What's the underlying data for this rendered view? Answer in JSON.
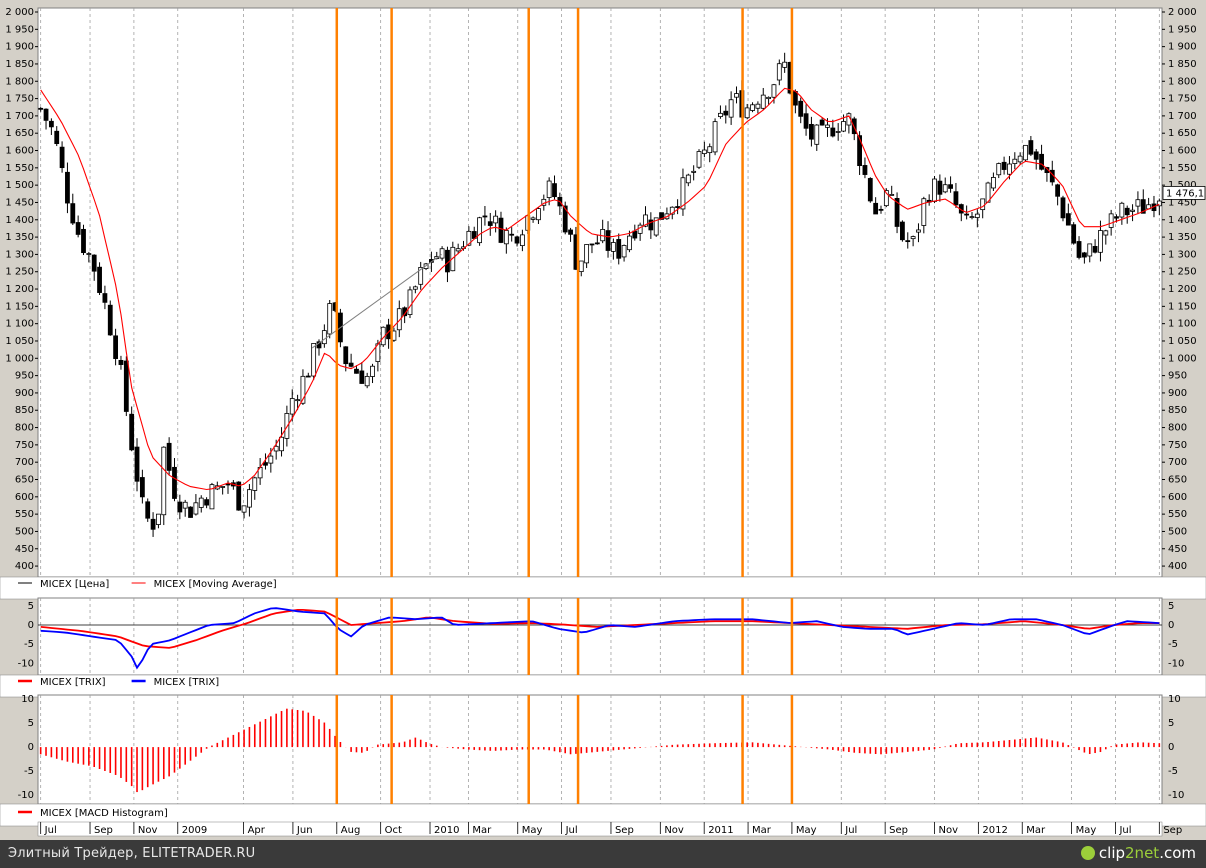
{
  "footer": {
    "left_text": "Элитный Трейдер, ELITETRADER.RU",
    "logo_text_1": "clip",
    "logo_text_2": "2net",
    "logo_text_3": ".com"
  },
  "colors": {
    "price": "#000000",
    "ma": "#ff0000",
    "trix_red": "#ff0000",
    "trix_blue": "#0000ff",
    "macd": "#ff0000",
    "marker": "#ff8000",
    "grid": "#a0a0a0",
    "panel_bg": "#ffffff",
    "frame": "#d4d0c8"
  },
  "chart_data": [
    {
      "type": "candlestick",
      "title": "",
      "legend": [
        {
          "name": "MICEX [Цена]",
          "color": "#000000"
        },
        {
          "name": "MICEX [Moving Average]",
          "color": "#ff0000"
        }
      ],
      "ylim": [
        380,
        2000
      ],
      "yticks": [
        400,
        450,
        500,
        550,
        600,
        650,
        700,
        750,
        800,
        850,
        900,
        950,
        1000,
        1050,
        1100,
        1150,
        1200,
        1250,
        1300,
        1350,
        1400,
        1450,
        1500,
        1550,
        1600,
        1650,
        1700,
        1750,
        1800,
        1850,
        1900,
        1950,
        2000
      ],
      "last_value_label": "1 476,1",
      "last_value": 1476.1,
      "ohlc": [],
      "price_anchors": [
        [
          0,
          1720
        ],
        [
          2,
          1650
        ],
        [
          4,
          1480
        ],
        [
          6,
          1350
        ],
        [
          8,
          1280
        ],
        [
          10,
          1150
        ],
        [
          12,
          1000
        ],
        [
          14,
          760
        ],
        [
          16,
          540
        ],
        [
          18,
          520
        ],
        [
          19,
          740
        ],
        [
          21,
          600
        ],
        [
          23,
          560
        ],
        [
          25,
          600
        ],
        [
          27,
          620
        ],
        [
          29,
          640
        ],
        [
          31,
          580
        ],
        [
          33,
          650
        ],
        [
          35,
          700
        ],
        [
          37,
          760
        ],
        [
          39,
          890
        ],
        [
          41,
          950
        ],
        [
          43,
          1050
        ],
        [
          45,
          1150
        ],
        [
          47,
          1000
        ],
        [
          49,
          960
        ],
        [
          51,
          940
        ],
        [
          53,
          1070
        ],
        [
          55,
          1100
        ],
        [
          57,
          1160
        ],
        [
          59,
          1250
        ],
        [
          61,
          1300
        ],
        [
          63,
          1280
        ],
        [
          65,
          1330
        ],
        [
          67,
          1380
        ],
        [
          69,
          1420
        ],
        [
          71,
          1370
        ],
        [
          73,
          1350
        ],
        [
          75,
          1400
        ],
        [
          77,
          1460
        ],
        [
          79,
          1490
        ],
        [
          81,
          1400
        ],
        [
          83,
          1270
        ],
        [
          85,
          1330
        ],
        [
          87,
          1340
        ],
        [
          89,
          1300
        ],
        [
          91,
          1360
        ],
        [
          93,
          1410
        ],
        [
          95,
          1390
        ],
        [
          97,
          1440
        ],
        [
          99,
          1480
        ],
        [
          101,
          1540
        ],
        [
          103,
          1600
        ],
        [
          105,
          1680
        ],
        [
          107,
          1750
        ],
        [
          109,
          1720
        ],
        [
          111,
          1760
        ],
        [
          113,
          1790
        ],
        [
          115,
          1850
        ],
        [
          117,
          1700
        ],
        [
          119,
          1640
        ],
        [
          121,
          1640
        ],
        [
          123,
          1680
        ],
        [
          125,
          1690
        ],
        [
          127,
          1560
        ],
        [
          129,
          1420
        ],
        [
          131,
          1480
        ],
        [
          133,
          1350
        ],
        [
          135,
          1330
        ],
        [
          137,
          1480
        ],
        [
          139,
          1500
        ],
        [
          141,
          1460
        ],
        [
          143,
          1380
        ],
        [
          145,
          1420
        ],
        [
          147,
          1490
        ],
        [
          149,
          1560
        ],
        [
          151,
          1600
        ],
        [
          153,
          1610
        ],
        [
          155,
          1540
        ],
        [
          157,
          1480
        ],
        [
          159,
          1380
        ],
        [
          161,
          1270
        ],
        [
          163,
          1330
        ],
        [
          165,
          1380
        ],
        [
          167,
          1420
        ],
        [
          169,
          1430
        ],
        [
          171,
          1440
        ],
        [
          173,
          1476
        ]
      ],
      "ma_anchors": [
        [
          0,
          1775
        ],
        [
          3,
          1690
        ],
        [
          6,
          1580
        ],
        [
          9,
          1420
        ],
        [
          12,
          1180
        ],
        [
          14,
          920
        ],
        [
          17,
          720
        ],
        [
          20,
          660
        ],
        [
          23,
          630
        ],
        [
          26,
          620
        ],
        [
          29,
          640
        ],
        [
          31,
          630
        ],
        [
          33,
          660
        ],
        [
          36,
          740
        ],
        [
          39,
          830
        ],
        [
          42,
          930
        ],
        [
          44,
          1020
        ],
        [
          46,
          980
        ],
        [
          48,
          970
        ],
        [
          50,
          990
        ],
        [
          53,
          1060
        ],
        [
          56,
          1120
        ],
        [
          59,
          1200
        ],
        [
          62,
          1260
        ],
        [
          65,
          1310
        ],
        [
          68,
          1360
        ],
        [
          70,
          1380
        ],
        [
          72,
          1370
        ],
        [
          75,
          1410
        ],
        [
          78,
          1450
        ],
        [
          80,
          1460
        ],
        [
          82,
          1410
        ],
        [
          85,
          1360
        ],
        [
          88,
          1350
        ],
        [
          91,
          1360
        ],
        [
          94,
          1390
        ],
        [
          97,
          1410
        ],
        [
          100,
          1450
        ],
        [
          103,
          1500
        ],
        [
          106,
          1620
        ],
        [
          109,
          1680
        ],
        [
          112,
          1720
        ],
        [
          115,
          1780
        ],
        [
          117,
          1770
        ],
        [
          119,
          1720
        ],
        [
          122,
          1680
        ],
        [
          125,
          1700
        ],
        [
          127,
          1620
        ],
        [
          129,
          1530
        ],
        [
          131,
          1470
        ],
        [
          134,
          1430
        ],
        [
          137,
          1450
        ],
        [
          140,
          1460
        ],
        [
          143,
          1420
        ],
        [
          146,
          1440
        ],
        [
          149,
          1510
        ],
        [
          152,
          1570
        ],
        [
          155,
          1560
        ],
        [
          158,
          1500
        ],
        [
          161,
          1380
        ],
        [
          164,
          1380
        ],
        [
          167,
          1400
        ],
        [
          170,
          1420
        ],
        [
          173,
          1445
        ]
      ],
      "trend_line": [
        [
          42,
          1030
        ],
        [
          62,
          1300
        ]
      ]
    },
    {
      "type": "line",
      "title": "",
      "legend": [
        {
          "name": "MICEX [TRIX]",
          "color": "#ff0000"
        },
        {
          "name": "MICEX [TRIX]",
          "color": "#0000ff"
        }
      ],
      "ylim": [
        -12,
        6
      ],
      "yticks": [
        5,
        0,
        -5,
        -10
      ],
      "series": [
        {
          "name": "MICEX [TRIX]",
          "color": "#ff0000",
          "anchors": [
            [
              0,
              -0.5
            ],
            [
              6,
              -1.5
            ],
            [
              12,
              -3
            ],
            [
              16,
              -5.5
            ],
            [
              20,
              -6
            ],
            [
              24,
              -4
            ],
            [
              28,
              -1.5
            ],
            [
              32,
              0.5
            ],
            [
              36,
              3
            ],
            [
              40,
              4
            ],
            [
              44,
              3.5
            ],
            [
              48,
              0
            ],
            [
              52,
              0.5
            ],
            [
              56,
              1
            ],
            [
              60,
              2
            ],
            [
              64,
              1
            ],
            [
              70,
              0.3
            ],
            [
              76,
              0.5
            ],
            [
              80,
              0.2
            ],
            [
              86,
              -0.5
            ],
            [
              92,
              0
            ],
            [
              98,
              0.5
            ],
            [
              104,
              1
            ],
            [
              110,
              1
            ],
            [
              116,
              0.5
            ],
            [
              122,
              0
            ],
            [
              128,
              -0.5
            ],
            [
              134,
              -1
            ],
            [
              140,
              0
            ],
            [
              146,
              0.2
            ],
            [
              152,
              1
            ],
            [
              158,
              0
            ],
            [
              162,
              -1
            ],
            [
              166,
              0
            ],
            [
              170,
              0.5
            ],
            [
              173,
              0.5
            ]
          ]
        },
        {
          "name": "MICEX [TRIX]",
          "color": "#0000ff",
          "anchors": [
            [
              0,
              -1.5
            ],
            [
              4,
              -2
            ],
            [
              8,
              -3
            ],
            [
              12,
              -4
            ],
            [
              14,
              -8
            ],
            [
              15,
              -11.5
            ],
            [
              17,
              -5
            ],
            [
              20,
              -4
            ],
            [
              23,
              -2
            ],
            [
              26,
              0
            ],
            [
              30,
              0.5
            ],
            [
              33,
              3
            ],
            [
              36,
              4.5
            ],
            [
              40,
              3.5
            ],
            [
              44,
              3
            ],
            [
              46,
              -1
            ],
            [
              48,
              -3
            ],
            [
              50,
              0
            ],
            [
              54,
              2
            ],
            [
              58,
              1.5
            ],
            [
              62,
              2
            ],
            [
              64,
              0
            ],
            [
              70,
              0.5
            ],
            [
              76,
              1
            ],
            [
              80,
              -1
            ],
            [
              84,
              -2
            ],
            [
              88,
              0
            ],
            [
              92,
              -0.5
            ],
            [
              98,
              1
            ],
            [
              104,
              1.5
            ],
            [
              110,
              1.5
            ],
            [
              116,
              0.5
            ],
            [
              120,
              1
            ],
            [
              124,
              -0.5
            ],
            [
              128,
              -1
            ],
            [
              132,
              -1
            ],
            [
              134,
              -2.5
            ],
            [
              138,
              -1
            ],
            [
              142,
              0.5
            ],
            [
              146,
              0
            ],
            [
              150,
              1.5
            ],
            [
              154,
              1.5
            ],
            [
              158,
              0
            ],
            [
              162,
              -2.5
            ],
            [
              166,
              0
            ],
            [
              168,
              1
            ],
            [
              173,
              0.5
            ]
          ]
        }
      ]
    },
    {
      "type": "bar",
      "title": "",
      "legend": [
        {
          "name": "MICEX [MACD Histogram]",
          "color": "#ff0000"
        }
      ],
      "ylim": [
        -11,
        10
      ],
      "yticks": [
        10,
        5,
        0,
        -5,
        -10
      ],
      "anchors": [
        [
          0,
          -1.5
        ],
        [
          4,
          -3
        ],
        [
          8,
          -4
        ],
        [
          12,
          -6
        ],
        [
          14,
          -8
        ],
        [
          15,
          -9.5
        ],
        [
          17,
          -8
        ],
        [
          20,
          -6
        ],
        [
          23,
          -3
        ],
        [
          26,
          0
        ],
        [
          29,
          2
        ],
        [
          32,
          4
        ],
        [
          35,
          6
        ],
        [
          38,
          8
        ],
        [
          41,
          7.5
        ],
        [
          44,
          5
        ],
        [
          46,
          1.5
        ],
        [
          48,
          -1
        ],
        [
          50,
          -1.2
        ],
        [
          52,
          0.5
        ],
        [
          56,
          1
        ],
        [
          58,
          2
        ],
        [
          60,
          0.8
        ],
        [
          62,
          0
        ],
        [
          66,
          -0.5
        ],
        [
          70,
          -0.8
        ],
        [
          74,
          -0.5
        ],
        [
          78,
          -0.5
        ],
        [
          82,
          -1.5
        ],
        [
          86,
          -1
        ],
        [
          90,
          -0.5
        ],
        [
          94,
          0
        ],
        [
          98,
          0.5
        ],
        [
          104,
          0.8
        ],
        [
          110,
          1
        ],
        [
          114,
          0.5
        ],
        [
          118,
          0
        ],
        [
          122,
          -0.5
        ],
        [
          126,
          -1.2
        ],
        [
          130,
          -1.5
        ],
        [
          134,
          -1
        ],
        [
          138,
          -0.5
        ],
        [
          142,
          0.8
        ],
        [
          146,
          1
        ],
        [
          150,
          1.5
        ],
        [
          154,
          2
        ],
        [
          158,
          1
        ],
        [
          162,
          -1.5
        ],
        [
          164,
          -1
        ],
        [
          166,
          0.5
        ],
        [
          170,
          1
        ],
        [
          173,
          0.8
        ]
      ]
    }
  ],
  "x_axis": {
    "labels": [
      {
        "text": "Jul",
        "i": 0
      },
      {
        "text": "Sep",
        "i": 9
      },
      {
        "text": "Nov",
        "i": 17
      },
      {
        "text": "2009",
        "i": 25
      },
      {
        "text": "Apr",
        "i": 37
      },
      {
        "text": "Jun",
        "i": 46
      },
      {
        "text": "Aug",
        "i": 54
      },
      {
        "text": "Oct",
        "i": 62
      },
      {
        "text": "2010",
        "i": 71
      },
      {
        "text": "Mar",
        "i": 78
      },
      {
        "text": "May",
        "i": 87
      },
      {
        "text": "Jul",
        "i": 95
      },
      {
        "text": "Sep",
        "i": 104
      },
      {
        "text": "Nov",
        "i": 113
      },
      {
        "text": "2011",
        "i": 121
      },
      {
        "text": "Mar",
        "i": 129
      },
      {
        "text": "May",
        "i": 137
      },
      {
        "text": "Jul",
        "i": 146
      },
      {
        "text": "Sep",
        "i": 154
      },
      {
        "text": "Nov",
        "i": 163
      },
      {
        "text": "2012",
        "i": 171
      },
      {
        "text": "Mar",
        "i": 179
      },
      {
        "text": "May",
        "i": 188
      },
      {
        "text": "Jul",
        "i": 196
      },
      {
        "text": "Sep",
        "i": 204
      }
    ],
    "markers": [
      54,
      64,
      89,
      98,
      128,
      137
    ]
  }
}
